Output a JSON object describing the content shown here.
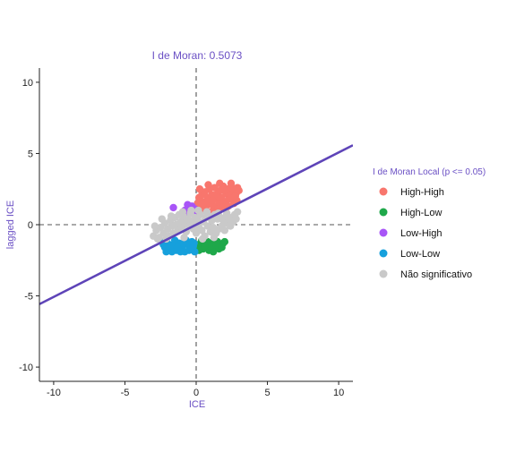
{
  "chart_data": {
    "type": "scatter",
    "title": "I de Moran:  0.5073",
    "xlabel": "ICE",
    "ylabel": "lagged ICE",
    "xlim": [
      -11,
      11
    ],
    "ylim": [
      -11,
      11
    ],
    "xticks": [
      -10,
      -5,
      0,
      5,
      10
    ],
    "yticks": [
      -10,
      -5,
      0,
      5,
      10
    ],
    "grid": false,
    "reference_lines": {
      "x": 0,
      "y": 0,
      "style": "dashed"
    },
    "regression_line": {
      "slope": 0.5073,
      "intercept": 0,
      "color": "#5E44B8"
    },
    "legend": {
      "title": "I de Moran Local (p <= 0.05)",
      "position": "right"
    },
    "accent_color": "#6A4FC4",
    "series": [
      {
        "name": "High-High",
        "color": "#F8766D",
        "points": [
          [
            0.1,
            1.5
          ],
          [
            0.2,
            1.9
          ],
          [
            0.3,
            1.2
          ],
          [
            0.4,
            2.1
          ],
          [
            0.5,
            1.6
          ],
          [
            0.6,
            2.3
          ],
          [
            0.7,
            1.3
          ],
          [
            0.8,
            1.9
          ],
          [
            0.9,
            2.5
          ],
          [
            1.0,
            1.5
          ],
          [
            1.1,
            2.1
          ],
          [
            1.2,
            1.3
          ],
          [
            1.3,
            2.6
          ],
          [
            1.4,
            1.8
          ],
          [
            1.5,
            2.2
          ],
          [
            1.6,
            1.5
          ],
          [
            1.7,
            2.4
          ],
          [
            1.8,
            1.9
          ],
          [
            1.9,
            2.7
          ],
          [
            2.0,
            1.6
          ],
          [
            2.1,
            2.2
          ],
          [
            2.2,
            2.5
          ],
          [
            2.3,
            1.8
          ],
          [
            2.4,
            2.1
          ],
          [
            2.5,
            2.6
          ],
          [
            2.6,
            1.9
          ],
          [
            2.7,
            2.4
          ],
          [
            2.8,
            2.2
          ],
          [
            2.9,
            2.6
          ],
          [
            3.0,
            2.4
          ],
          [
            0.35,
            1.0
          ],
          [
            0.65,
            1.1
          ],
          [
            1.05,
            0.9
          ],
          [
            1.45,
            1.0
          ],
          [
            1.85,
            1.2
          ],
          [
            2.25,
            1.3
          ],
          [
            2.65,
            1.5
          ],
          [
            0.85,
            2.8
          ],
          [
            1.65,
            2.9
          ],
          [
            2.45,
            2.9
          ],
          [
            0.25,
            2.5
          ],
          [
            1.25,
            2.0
          ],
          [
            2.05,
            1.1
          ],
          [
            2.85,
            1.7
          ],
          [
            1.55,
            1.1
          ],
          [
            0.75,
            1.6
          ],
          [
            1.95,
            2.4
          ],
          [
            2.75,
            2.0
          ],
          [
            0.45,
            1.4
          ],
          [
            1.15,
            1.7
          ]
        ]
      },
      {
        "name": "High-Low",
        "color": "#1FA84A",
        "points": [
          [
            0.1,
            -1.5
          ],
          [
            0.3,
            -1.3
          ],
          [
            0.5,
            -1.7
          ],
          [
            0.7,
            -1.4
          ],
          [
            0.9,
            -1.8
          ],
          [
            1.1,
            -1.3
          ],
          [
            1.3,
            -1.6
          ],
          [
            1.5,
            -1.2
          ],
          [
            1.7,
            -1.5
          ],
          [
            1.9,
            -1.3
          ],
          [
            0.4,
            -1.1
          ],
          [
            0.8,
            -1.2
          ],
          [
            1.2,
            -1.9
          ],
          [
            1.6,
            -1.7
          ],
          [
            0.2,
            -1.8
          ],
          [
            1.0,
            -1.5
          ],
          [
            1.4,
            -1.4
          ],
          [
            1.8,
            -1.6
          ],
          [
            0.6,
            -1.5
          ],
          [
            2.0,
            -1.2
          ]
        ]
      },
      {
        "name": "Low-High",
        "color": "#A855F7",
        "points": [
          [
            -1.6,
            1.2
          ],
          [
            -0.8,
            1.0
          ],
          [
            -0.6,
            1.4
          ],
          [
            -0.4,
            1.1
          ],
          [
            -0.3,
            1.3
          ],
          [
            -0.2,
            0.9
          ],
          [
            -0.5,
            0.8
          ],
          [
            -0.1,
            1.1
          ]
        ]
      },
      {
        "name": "Low-Low",
        "color": "#16A0DC",
        "points": [
          [
            -2.4,
            -1.2
          ],
          [
            -2.2,
            -1.6
          ],
          [
            -2.0,
            -1.3
          ],
          [
            -1.8,
            -1.7
          ],
          [
            -1.6,
            -1.4
          ],
          [
            -1.4,
            -1.8
          ],
          [
            -1.2,
            -1.3
          ],
          [
            -1.0,
            -1.6
          ],
          [
            -0.8,
            -1.9
          ],
          [
            -0.6,
            -1.4
          ],
          [
            -0.4,
            -1.7
          ],
          [
            -0.2,
            -1.5
          ],
          [
            -0.1,
            -1.9
          ],
          [
            -2.1,
            -1.9
          ],
          [
            -1.5,
            -1.1
          ],
          [
            -1.1,
            -1.9
          ],
          [
            -0.7,
            -1.1
          ],
          [
            -0.3,
            -1.2
          ],
          [
            -1.9,
            -1.5
          ],
          [
            -1.3,
            -1.6
          ],
          [
            -0.9,
            -1.3
          ],
          [
            -0.5,
            -1.8
          ],
          [
            -2.3,
            -1.4
          ],
          [
            -1.7,
            -1.9
          ],
          [
            -0.15,
            -1.3
          ]
        ]
      },
      {
        "name": "Não significativo",
        "color": "#C9C9C9",
        "points": [
          [
            -3.0,
            -0.8
          ],
          [
            -2.8,
            -0.4
          ],
          [
            -2.6,
            -0.9
          ],
          [
            -2.5,
            -0.2
          ],
          [
            -2.3,
            -0.6
          ],
          [
            -2.2,
            0.1
          ],
          [
            -2.0,
            -0.3
          ],
          [
            -1.9,
            -0.8
          ],
          [
            -1.8,
            0.3
          ],
          [
            -1.7,
            -0.1
          ],
          [
            -1.6,
            -0.6
          ],
          [
            -1.5,
            0.5
          ],
          [
            -1.4,
            0.0
          ],
          [
            -1.3,
            -0.4
          ],
          [
            -1.2,
            0.7
          ],
          [
            -1.1,
            0.2
          ],
          [
            -1.0,
            -0.2
          ],
          [
            -0.9,
            0.6
          ],
          [
            -0.8,
            0.1
          ],
          [
            -0.7,
            -0.5
          ],
          [
            -0.6,
            0.4
          ],
          [
            -0.5,
            -0.1
          ],
          [
            -0.4,
            0.8
          ],
          [
            -0.3,
            0.2
          ],
          [
            -0.2,
            -0.3
          ],
          [
            -0.1,
            0.5
          ],
          [
            0.0,
            -0.6
          ],
          [
            0.1,
            0.3
          ],
          [
            0.2,
            -0.2
          ],
          [
            0.3,
            0.7
          ],
          [
            0.4,
            -0.4
          ],
          [
            0.5,
            0.2
          ],
          [
            0.6,
            -0.8
          ],
          [
            0.7,
            0.5
          ],
          [
            0.8,
            -0.1
          ],
          [
            0.9,
            0.6
          ],
          [
            1.0,
            -0.5
          ],
          [
            1.1,
            0.3
          ],
          [
            1.2,
            -0.2
          ],
          [
            1.3,
            0.7
          ],
          [
            1.4,
            -0.6
          ],
          [
            1.5,
            0.4
          ],
          [
            1.6,
            -0.3
          ],
          [
            1.7,
            0.5
          ],
          [
            1.8,
            -0.1
          ],
          [
            1.9,
            0.3
          ],
          [
            2.0,
            -0.4
          ],
          [
            2.1,
            0.6
          ],
          [
            2.2,
            0.1
          ],
          [
            2.3,
            0.4
          ],
          [
            2.4,
            -0.1
          ],
          [
            2.5,
            0.5
          ],
          [
            2.6,
            0.2
          ],
          [
            2.7,
            0.7
          ],
          [
            2.8,
            0.4
          ],
          [
            2.9,
            0.9
          ],
          [
            -2.7,
            -1.0
          ],
          [
            -2.1,
            -1.0
          ],
          [
            -0.85,
            -0.9
          ],
          [
            0.45,
            -1.0
          ],
          [
            1.25,
            -0.9
          ],
          [
            -1.75,
            0.6
          ],
          [
            -0.35,
            1.0
          ],
          [
            0.15,
            1.0
          ],
          [
            0.75,
            0.9
          ],
          [
            -2.9,
            -0.1
          ],
          [
            -2.4,
            0.4
          ],
          [
            -0.95,
            0.9
          ],
          [
            1.55,
            0.8
          ],
          [
            2.15,
            0.8
          ]
        ]
      }
    ]
  }
}
